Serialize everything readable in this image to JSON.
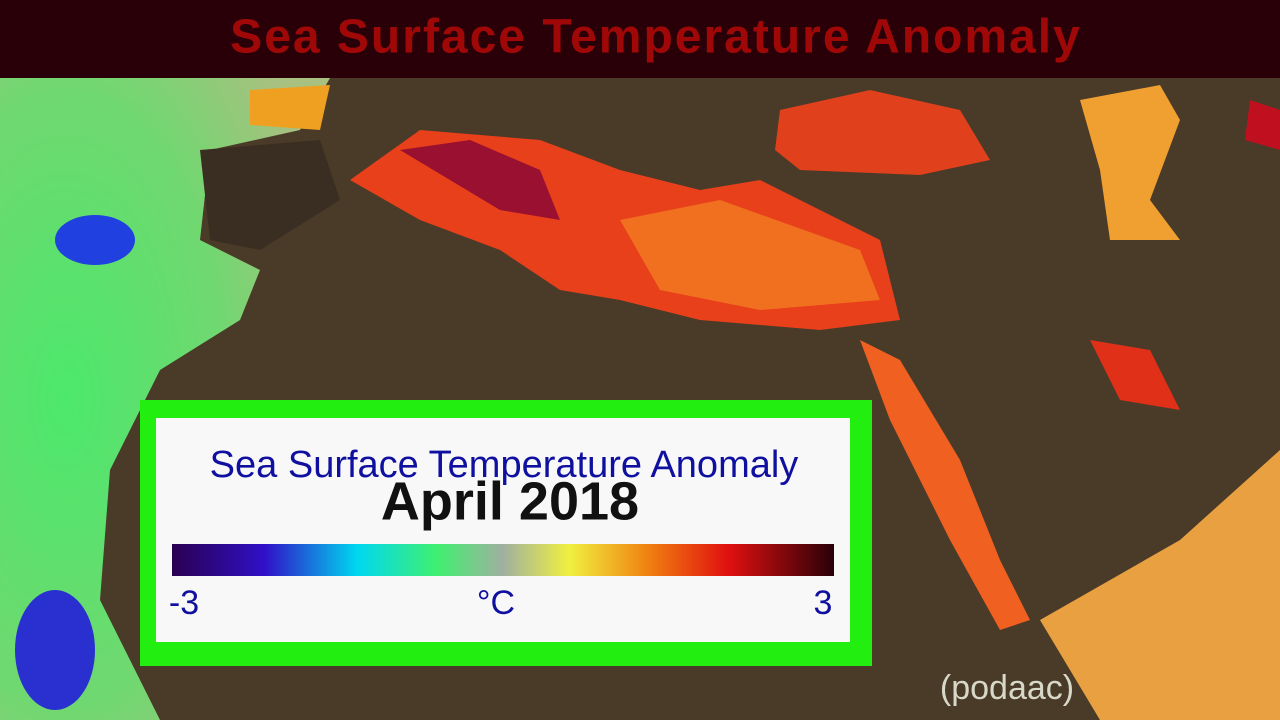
{
  "header": {
    "title": "Sea Surface Temperature Anomaly"
  },
  "legend": {
    "title": "Sea Surface Temperature Anomaly",
    "date": "April 2018",
    "min": -3,
    "unit": "°C",
    "max": 3
  },
  "credit": "(podaac)"
}
